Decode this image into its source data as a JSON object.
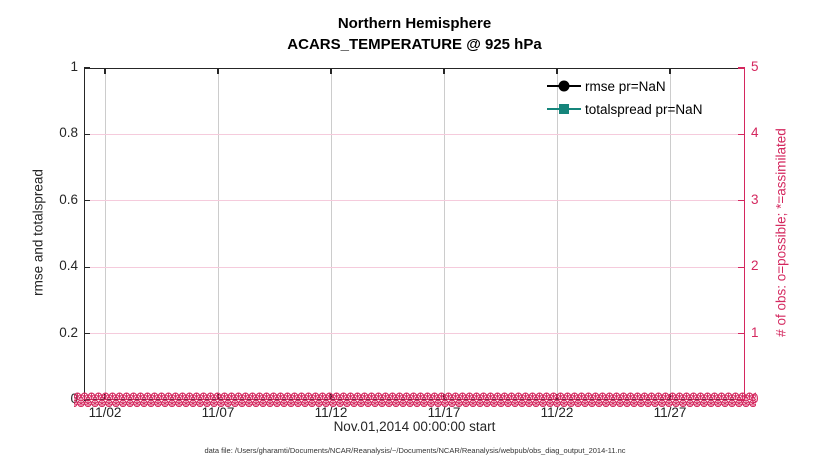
{
  "chart_data": {
    "type": "line",
    "title": "Northern Hemisphere",
    "subtitle": "ACARS_TEMPERATURE @ 925 hPa",
    "xlabel": "Nov.01,2014 00:00:00 start",
    "ylabel_left": "rmse and totalspread",
    "ylabel_right": "# of obs: o=possible; *=assimilated",
    "x_tick_labels": [
      "11/02",
      "11/07",
      "11/12",
      "11/17",
      "11/22",
      "11/27"
    ],
    "y_left_ticks": [
      "0",
      "0.2",
      "0.4",
      "0.6",
      "0.8",
      "1"
    ],
    "y_right_ticks": [
      "0",
      "1",
      "2",
      "3",
      "4",
      "5"
    ],
    "ylim_left": [
      0,
      1
    ],
    "ylim_right": [
      0,
      5
    ],
    "grid": true,
    "legend_position": "top-right-inside",
    "series": [
      {
        "name": "rmse pr=NaN",
        "marker": "circle",
        "color": "#000000",
        "values": "NaN (no data plotted)"
      },
      {
        "name": "totalspread pr=NaN",
        "marker": "square",
        "color": "#15857b",
        "values": "NaN (no data plotted)"
      },
      {
        "name": "possible obs count (o markers)",
        "marker": "o",
        "color": "#d4275e",
        "constant_value": 0
      },
      {
        "name": "assimilated obs count (* markers)",
        "marker": "*",
        "color": "#d4275e",
        "constant_value": 0
      }
    ]
  },
  "legend": {
    "items": [
      {
        "label": "rmse pr=NaN",
        "color": "#000000",
        "marker": "circle"
      },
      {
        "label": "totalspread pr=NaN",
        "color": "#15857b",
        "marker": "square"
      }
    ]
  },
  "footer": {
    "data_file": "data file: /Users/gharamti/Documents/NCAR/Reanalysis/~/Documents/NCAR/Reanalysis/webpub/obs_diag_output_2014-11.nc"
  },
  "colors": {
    "right_axis": "#d4275e",
    "grid_horizontal": "#f5cbdc",
    "grid_vertical": "#cccccc",
    "axis_dark": "#262626",
    "rmse_black": "#000000",
    "totalspread_teal": "#15857b"
  }
}
